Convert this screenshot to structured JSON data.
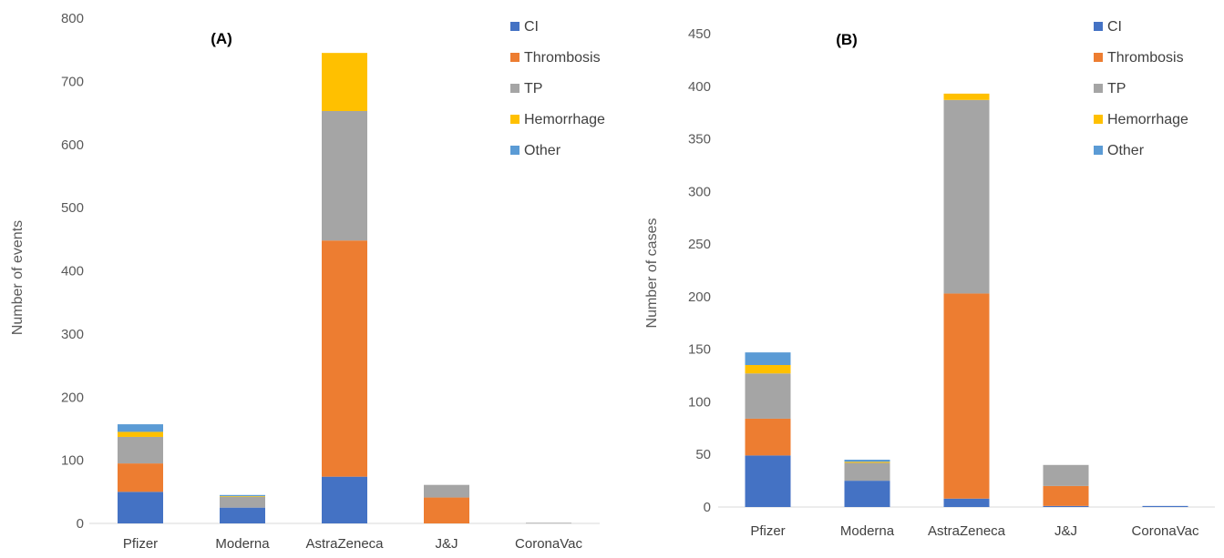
{
  "chart_data": [
    {
      "type": "bar",
      "stacked": true,
      "title": "(A)",
      "xlabel": "",
      "ylabel": "Number of events",
      "ylim": [
        0,
        800
      ],
      "yticks": [
        0,
        100,
        200,
        300,
        400,
        500,
        600,
        700,
        800
      ],
      "grid": false,
      "legend_position": "top-right",
      "categories": [
        "Pfizer",
        "Moderna",
        "AstraZeneca",
        "J&J",
        "CoronaVac"
      ],
      "series": [
        {
          "name": "CI",
          "color": "#4472C4",
          "values": [
            50,
            25,
            74,
            0,
            0
          ]
        },
        {
          "name": "Thrombosis",
          "color": "#ED7D31",
          "values": [
            45,
            0,
            374,
            41,
            0
          ]
        },
        {
          "name": "TP",
          "color": "#A5A5A5",
          "values": [
            42,
            17,
            205,
            20,
            1
          ]
        },
        {
          "name": "Hemorrhage",
          "color": "#FFC000",
          "values": [
            8,
            1,
            92,
            0,
            0
          ]
        },
        {
          "name": "Other",
          "color": "#5B9BD5",
          "values": [
            12,
            2,
            0,
            0,
            0
          ]
        }
      ]
    },
    {
      "type": "bar",
      "stacked": true,
      "title": "(B)",
      "xlabel": "",
      "ylabel": "Number of cases",
      "ylim": [
        0,
        450
      ],
      "yticks": [
        0,
        50,
        100,
        150,
        200,
        250,
        300,
        350,
        400,
        450
      ],
      "grid": false,
      "legend_position": "top-right",
      "categories": [
        "Pfizer",
        "Moderna",
        "AstraZeneca",
        "J&J",
        "CoronaVac"
      ],
      "series": [
        {
          "name": "CI",
          "color": "#4472C4",
          "values": [
            49,
            25,
            8,
            1,
            1
          ]
        },
        {
          "name": "Thrombosis",
          "color": "#ED7D31",
          "values": [
            35,
            0,
            195,
            19,
            0
          ]
        },
        {
          "name": "TP",
          "color": "#A5A5A5",
          "values": [
            43,
            17,
            184,
            20,
            0
          ]
        },
        {
          "name": "Hemorrhage",
          "color": "#FFC000",
          "values": [
            8,
            1,
            6,
            0,
            0
          ]
        },
        {
          "name": "Other",
          "color": "#5B9BD5",
          "values": [
            12,
            2,
            0,
            0,
            0
          ]
        }
      ]
    }
  ]
}
